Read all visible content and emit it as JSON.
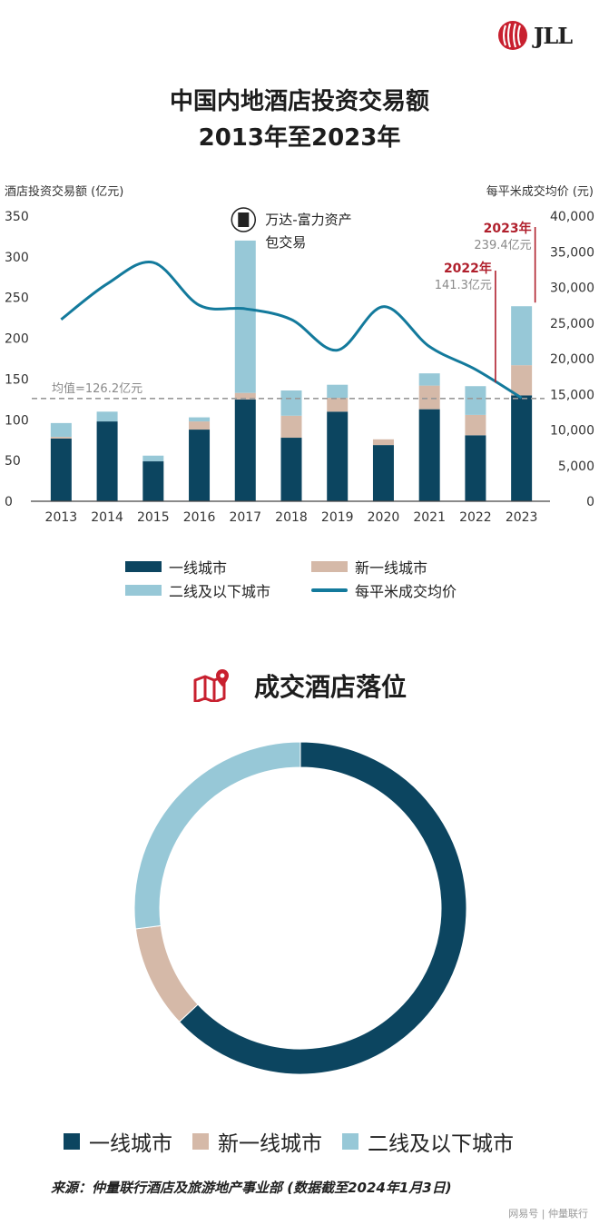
{
  "brand": {
    "name": "JLL",
    "accent": "#c8202f"
  },
  "title_line1": "中国内地酒店投资交易额",
  "title_line2": "2013年至2023年",
  "colors": {
    "tier1": "#0c4560",
    "new_tier1": "#d5b9a8",
    "tier2": "#97c8d7",
    "line": "#137a9c",
    "annotation": "#b01f2c",
    "grey_text": "#8a8a8a"
  },
  "chart_data": [
    {
      "type": "bar",
      "stacked": true,
      "ylabel": "酒店投资交易额 (亿元)",
      "y2label": "每平米成交均价 (元)",
      "ylim": [
        0,
        350
      ],
      "y2lim": [
        0,
        40000
      ],
      "yticks": [
        0,
        50,
        100,
        150,
        200,
        250,
        300,
        350
      ],
      "y2ticks": [
        "0",
        "5,000",
        "10,000",
        "15,000",
        "20,000",
        "25,000",
        "30,000",
        "35,000",
        "40,000"
      ],
      "categories": [
        "2013",
        "2014",
        "2015",
        "2016",
        "2017",
        "2018",
        "2019",
        "2020",
        "2021",
        "2022",
        "2023"
      ],
      "series": [
        {
          "name": "一线城市",
          "values": [
            77,
            98,
            49,
            88,
            125,
            78,
            110,
            69,
            113,
            81,
            130
          ]
        },
        {
          "name": "新一线城市",
          "values": [
            2,
            0,
            0,
            10,
            8,
            27,
            17,
            7,
            29,
            25,
            37
          ]
        },
        {
          "name": "二线及以下城市",
          "values": [
            17,
            12,
            7,
            5,
            187,
            31,
            16,
            0,
            15,
            35.3,
            72.4
          ]
        }
      ],
      "line_series": {
        "name": "每平米成交均价",
        "axis": "right",
        "values": [
          25500,
          30500,
          33500,
          27500,
          27000,
          25500,
          21200,
          27300,
          21700,
          18500,
          14500
        ]
      },
      "mean_line": {
        "value": 126.2,
        "label": "均值=126.2亿元"
      },
      "annotations": {
        "wanda": {
          "line1": "万达-富力资产",
          "line2": "包交易"
        },
        "y2022": {
          "year": "2022年",
          "value": "141.3亿元"
        },
        "y2023": {
          "year": "2023年",
          "value": "239.4亿元"
        }
      },
      "legend": [
        "一线城市",
        "新一线城市",
        "二线及以下城市",
        "每平米成交均价"
      ]
    },
    {
      "type": "pie",
      "donut": true,
      "title": "成交酒店落位",
      "categories": [
        "一线城市",
        "新一线城市",
        "二线及以下城市"
      ],
      "values": [
        63,
        10,
        27
      ]
    }
  ],
  "source": "来源：仲量联行酒店及旅游地产事业部 (数据截至2024年1月3日)",
  "watermark": "网易号 | 仲量联行"
}
